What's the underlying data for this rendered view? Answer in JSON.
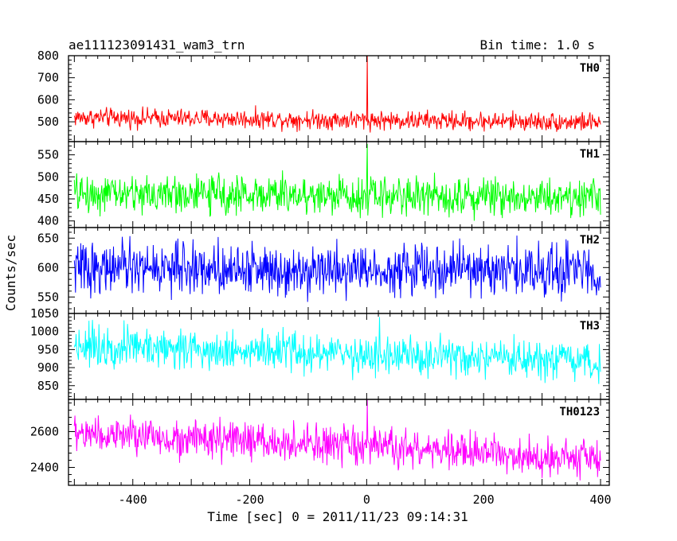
{
  "header": {
    "title": "ae111123091431_wam3_trn",
    "bin_time": "Bin time: 1.0 s"
  },
  "chart_data": {
    "type": "line",
    "title": "ae111123091431_wam3_trn",
    "xlabel": "Time [sec] 0 = 2011/11/23 09:14:31",
    "ylabel": "Counts/sec",
    "xlim": [
      -510,
      415
    ],
    "x_ticks": [
      -400,
      -200,
      0,
      200,
      400
    ],
    "x_step": 1.0,
    "grid": false,
    "panels": [
      {
        "name": "TH0",
        "color": "#ff0000",
        "ylim": [
          410,
          800
        ],
        "y_ticks": [
          500,
          600,
          700,
          800
        ],
        "x_range": [
          -500,
          400
        ],
        "start_level": 520,
        "end_level": 498,
        "noise_amplitude": 45,
        "spike": {
          "x": 1,
          "y": 800
        }
      },
      {
        "name": "TH1",
        "color": "#00ff00",
        "ylim": [
          385,
          580
        ],
        "y_ticks": [
          400,
          450,
          500,
          550
        ],
        "x_range": [
          -500,
          400
        ],
        "start_level": 462,
        "end_level": 455,
        "noise_amplitude": 45,
        "spike": {
          "x": 1,
          "y": 575
        }
      },
      {
        "name": "TH2",
        "color": "#0000ff",
        "ylim": [
          522,
          668
        ],
        "y_ticks": [
          550,
          600,
          650
        ],
        "x_range": [
          -500,
          400
        ],
        "start_level": 600,
        "end_level": 595,
        "noise_amplitude": 45,
        "spike": null
      },
      {
        "name": "TH3",
        "color": "#00ffff",
        "ylim": [
          812,
          1050
        ],
        "y_ticks": [
          850,
          900,
          950,
          1000,
          1050
        ],
        "x_range": [
          -500,
          400
        ],
        "start_level": 965,
        "end_level": 910,
        "noise_amplitude": 58,
        "spike": {
          "x": 22,
          "y": 1040
        }
      },
      {
        "name": "TH0123",
        "color": "#ff00ff",
        "ylim": [
          2300,
          2780
        ],
        "y_ticks": [
          2400,
          2600
        ],
        "x_range": [
          -500,
          400
        ],
        "start_level": 2590,
        "end_level": 2450,
        "noise_amplitude": 110,
        "spike": {
          "x": 1,
          "y": 2780
        }
      }
    ]
  }
}
